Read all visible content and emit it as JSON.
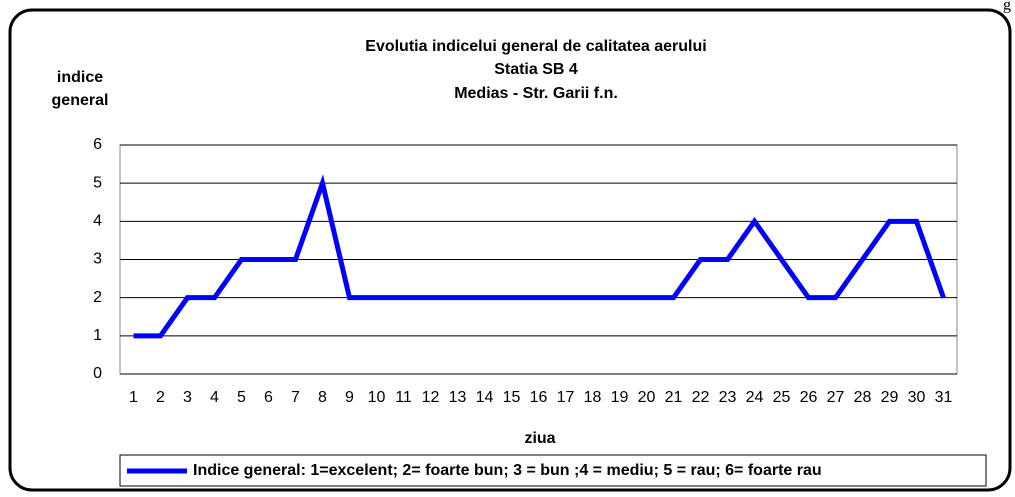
{
  "chart_data": {
    "type": "line",
    "title": [
      "Evolutia  indicelui general de calitatea aerului",
      "Statia SB 4",
      "Medias - Str. Garii  f.n."
    ],
    "corner_text": "g",
    "y_label": [
      "indice",
      "general"
    ],
    "x_label": "ziua",
    "categories": [
      "1",
      "2",
      "3",
      "4",
      "5",
      "6",
      "7",
      "8",
      "9",
      "10",
      "11",
      "12",
      "13",
      "14",
      "15",
      "16",
      "17",
      "18",
      "19",
      "20",
      "21",
      "22",
      "23",
      "24",
      "25",
      "26",
      "27",
      "28",
      "29",
      "30",
      "31"
    ],
    "series": [
      {
        "name": "Indice general: 1=excelent; 2= foarte bun; 3 = bun ;4 = mediu; 5 = rau; 6= foarte rau",
        "color": "#0000ff",
        "values": [
          1,
          1,
          2,
          2,
          3,
          3,
          3,
          5,
          2,
          2,
          2,
          2,
          2,
          2,
          2,
          2,
          2,
          2,
          2,
          2,
          2,
          3,
          3,
          4,
          3,
          2,
          2,
          3,
          4,
          4,
          2
        ]
      }
    ],
    "ylim": [
      0,
      6
    ],
    "yticks": [
      0,
      1,
      2,
      3,
      4,
      5,
      6
    ],
    "grid": true
  }
}
